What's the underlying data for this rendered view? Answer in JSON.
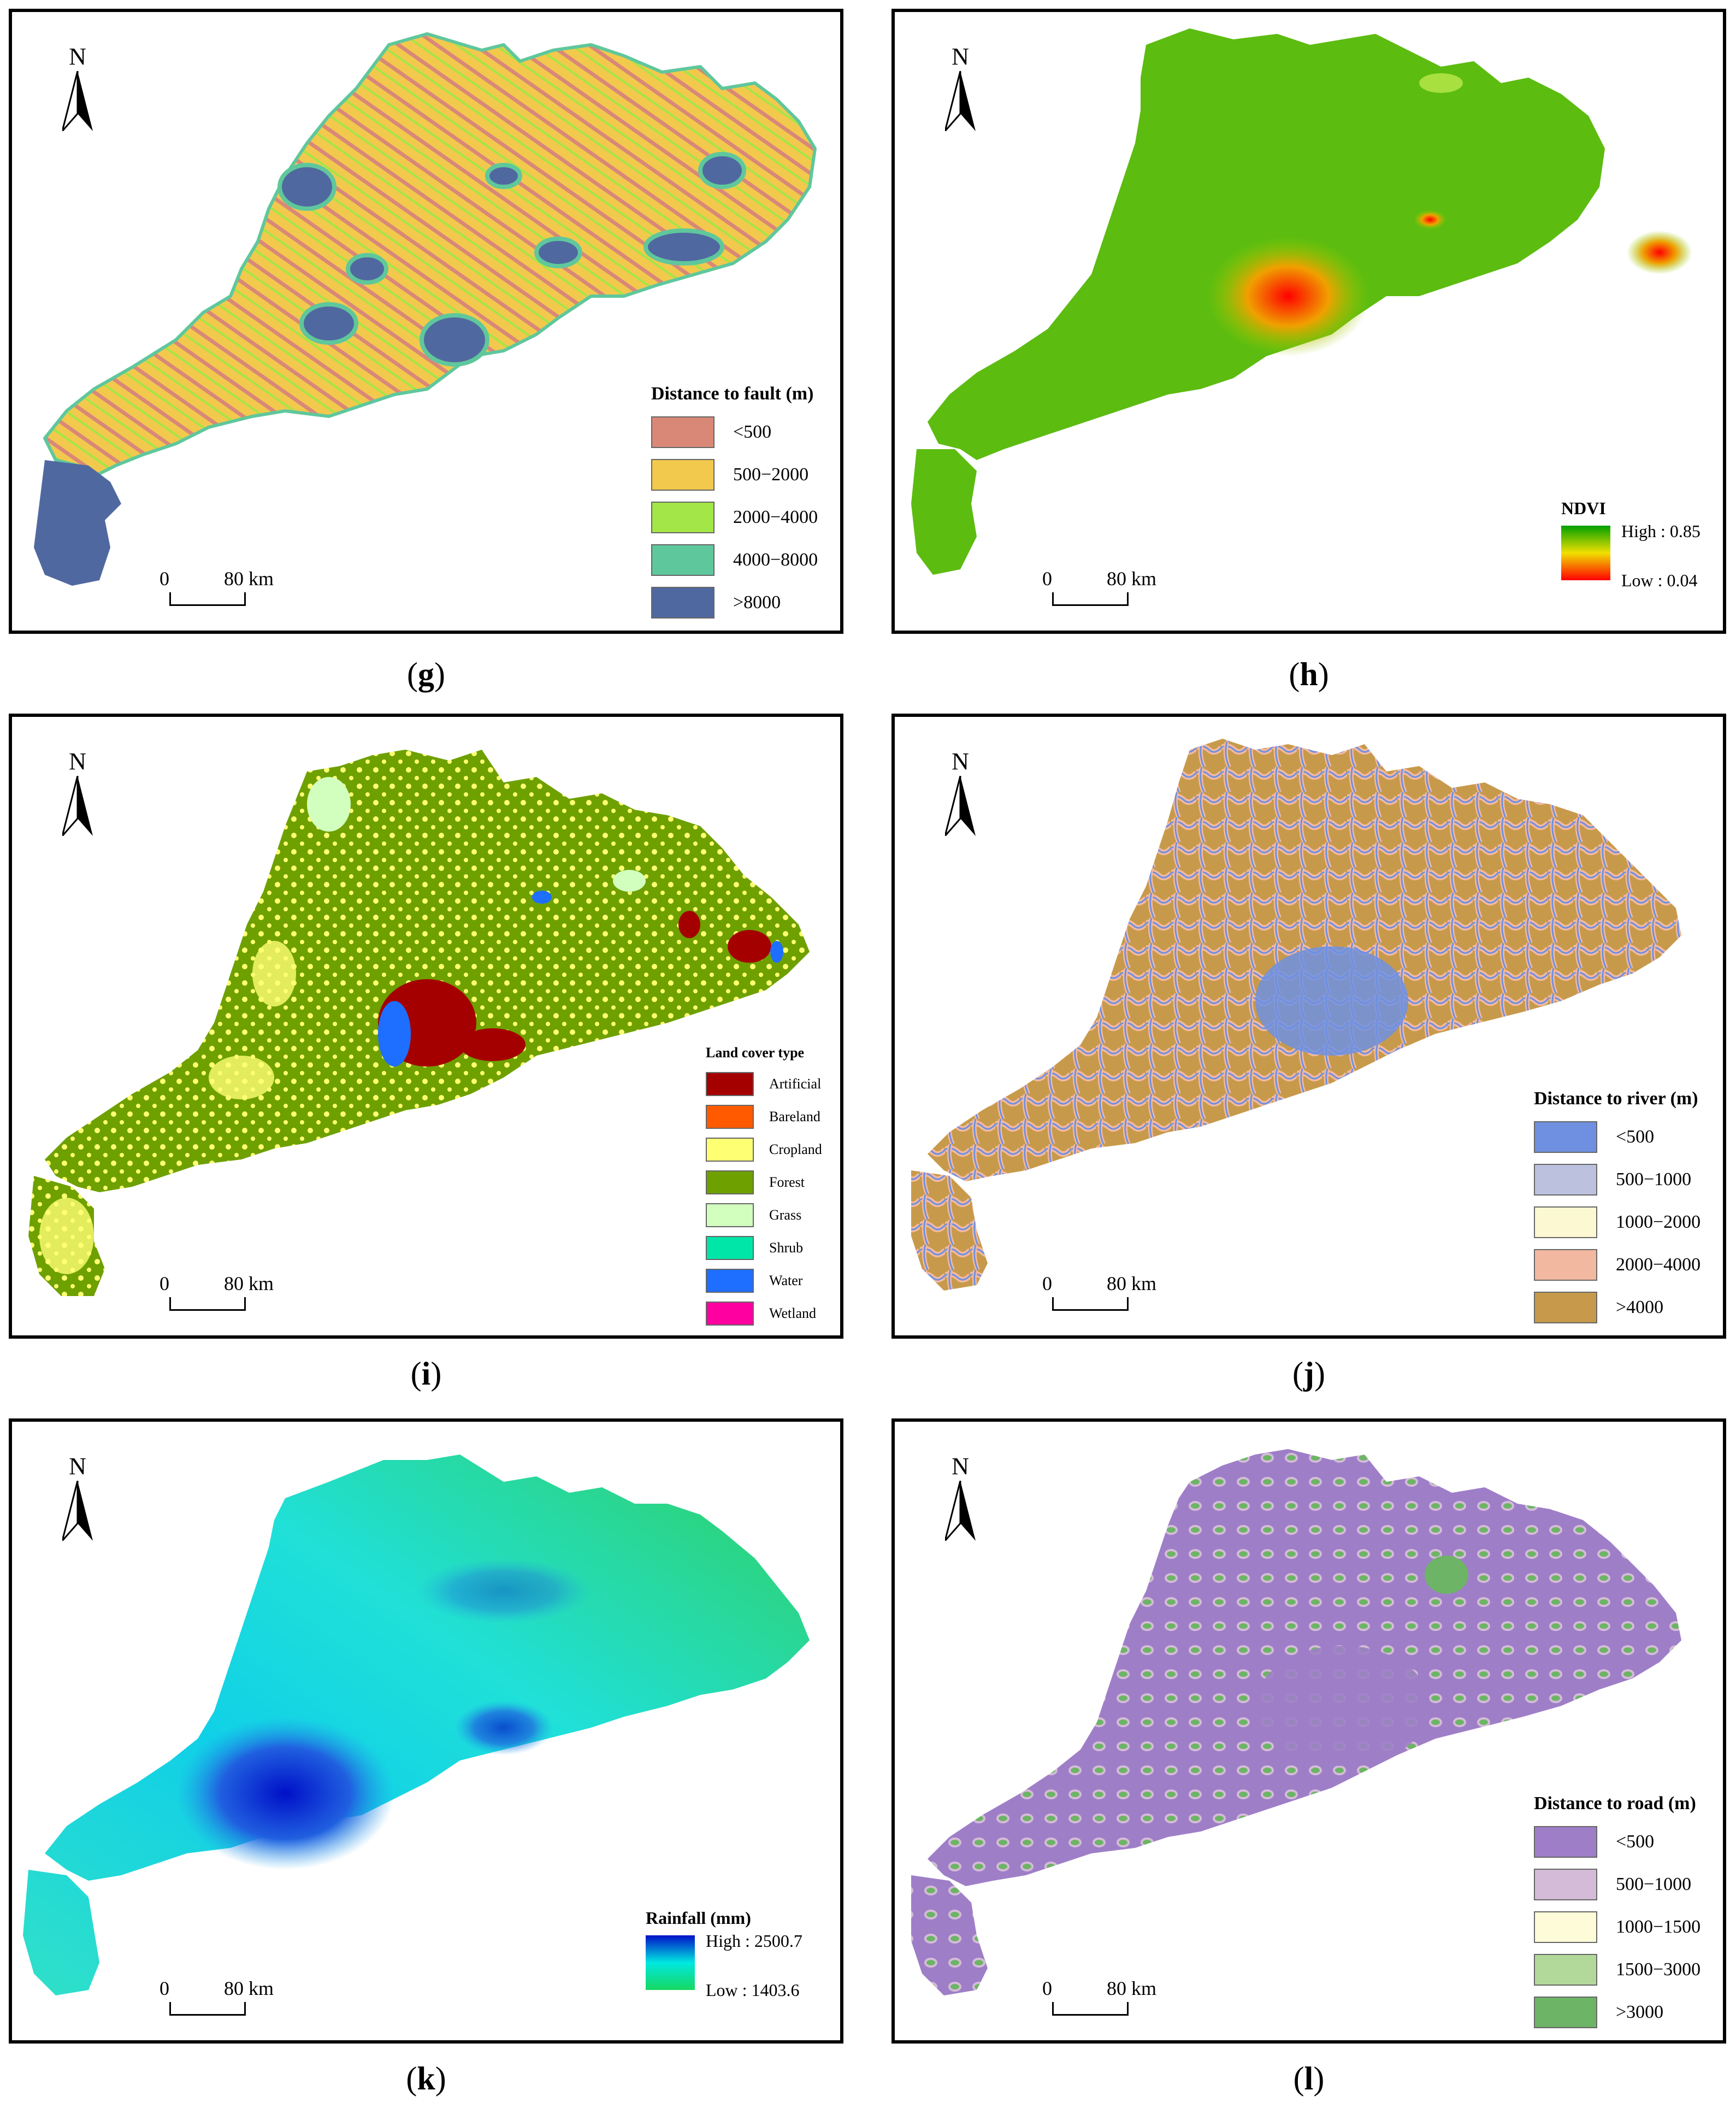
{
  "north_label": "N",
  "scale": {
    "start": "0",
    "end": "80 km"
  },
  "panels": {
    "g": {
      "caption_letter": "g",
      "legend_title": "Distance to fault (m)",
      "classes": [
        {
          "label": "<500",
          "color": "#d98878"
        },
        {
          "label": "500−2000",
          "color": "#f2c94c"
        },
        {
          "label": "2000−4000",
          "color": "#a3e647"
        },
        {
          "label": "4000−8000",
          "color": "#5fc79c"
        },
        {
          "label": ">8000",
          "color": "#5068a0"
        }
      ]
    },
    "h": {
      "caption_letter": "h",
      "legend_title": "NDVI",
      "high_label": "High : 0.85",
      "low_label": "Low : 0.04",
      "colors": [
        "#00a000",
        "#f0e000",
        "#ff0000"
      ]
    },
    "i": {
      "caption_letter": "i",
      "legend_title": "Land cover type",
      "classes": [
        {
          "label": "Artificial",
          "color": "#a50000"
        },
        {
          "label": "Bareland",
          "color": "#ff5a00"
        },
        {
          "label": "Cropland",
          "color": "#ffff73"
        },
        {
          "label": "Forest",
          "color": "#6ea000"
        },
        {
          "label": "Grass",
          "color": "#d2ffbe"
        },
        {
          "label": "Shrub",
          "color": "#00e6a9"
        },
        {
          "label": "Water",
          "color": "#1e6eff"
        },
        {
          "label": "Wetland",
          "color": "#ff00a0"
        }
      ]
    },
    "j": {
      "caption_letter": "j",
      "legend_title": "Distance to river (m)",
      "classes": [
        {
          "label": "<500",
          "color": "#6f90e0"
        },
        {
          "label": "500−1000",
          "color": "#bcc2de"
        },
        {
          "label": "1000−2000",
          "color": "#fcf8d2"
        },
        {
          "label": "2000−4000",
          "color": "#f3b9a0"
        },
        {
          "label": ">4000",
          "color": "#c79a4b"
        }
      ]
    },
    "k": {
      "caption_letter": "k",
      "legend_title": "Rainfall (mm)",
      "high_label": "High : 2500.7",
      "low_label": "Low : 1403.6",
      "colors": [
        "#0010c8",
        "#00e8e0",
        "#18d860"
      ]
    },
    "l": {
      "caption_letter": "l",
      "legend_title": "Distance to road (m)",
      "classes": [
        {
          "label": "<500",
          "color": "#9f7ec8"
        },
        {
          "label": "500−1000",
          "color": "#d4bcd8"
        },
        {
          "label": "1000−1500",
          "color": "#fdfbd8"
        },
        {
          "label": "1500−3000",
          "color": "#b3d99a"
        },
        {
          "label": ">3000",
          "color": "#6db466"
        }
      ]
    }
  }
}
